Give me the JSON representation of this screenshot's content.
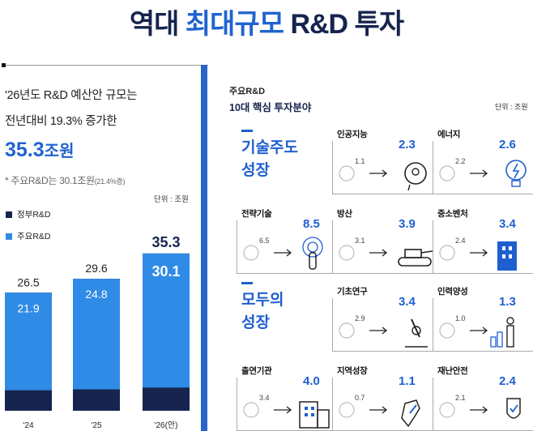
{
  "title": {
    "part1": "역대 ",
    "part2": "최대규모",
    "part3": " R&D 투자"
  },
  "left": {
    "line1": "'26년도 R&D 예산안 규모는",
    "line2": "전년대비 19.3% 증가한",
    "big_value": "35.3",
    "big_unit": "조원",
    "note_main": "* 주요R&D는 30.1조원",
    "note_small": "(21.4%증)",
    "unit": "단위 : 조원",
    "legend": [
      {
        "label": "정부R&D",
        "color": "#16244f"
      },
      {
        "label": "주요R&D",
        "color": "#2f8be6"
      }
    ]
  },
  "chart_data": {
    "type": "bar",
    "categories": [
      "'24",
      "'25",
      "'26(안)"
    ],
    "series": [
      {
        "name": "정부R&D",
        "values": [
          26.5,
          29.6,
          35.3
        ],
        "color": "#16244f"
      },
      {
        "name": "주요R&D",
        "values": [
          21.9,
          24.8,
          30.1
        ],
        "color": "#2f8be6"
      }
    ],
    "ylim": [
      0,
      40
    ],
    "grid": false,
    "legend": "top-left"
  },
  "right": {
    "head1": "주요R&D",
    "head2": "10대 핵심 투자분야",
    "unit": "단위 : 조원",
    "groups": [
      {
        "line1": "기술주도",
        "line2": "성장"
      },
      {
        "line1": "모두의",
        "line2": "성장"
      }
    ],
    "fields": [
      {
        "label": "인공지능",
        "old": "1.1",
        "new": "2.3",
        "icon": "ai-head-icon"
      },
      {
        "label": "에너지",
        "old": "2.2",
        "new": "2.6",
        "icon": "light-bulb-icon"
      },
      {
        "label": "전략기술",
        "old": "6.5",
        "new": "8.5",
        "icon": "touch-chip-icon"
      },
      {
        "label": "방산",
        "old": "3.1",
        "new": "3.9",
        "icon": "tank-icon"
      },
      {
        "label": "중소벤처",
        "old": "2.4",
        "new": "3.4",
        "icon": "building-icon"
      },
      {
        "label": "기초연구",
        "old": "2.9",
        "new": "3.4",
        "icon": "microscope-icon"
      },
      {
        "label": "인력양성",
        "old": "1.0",
        "new": "1.3",
        "icon": "person-growth-icon"
      },
      {
        "label": "출연기관",
        "old": "3.4",
        "new": "4.0",
        "icon": "office-building-icon"
      },
      {
        "label": "지역성장",
        "old": "0.7",
        "new": "1.1",
        "icon": "region-map-icon"
      },
      {
        "label": "재난안전",
        "old": "2.1",
        "new": "2.4",
        "icon": "shield-check-icon"
      }
    ]
  }
}
